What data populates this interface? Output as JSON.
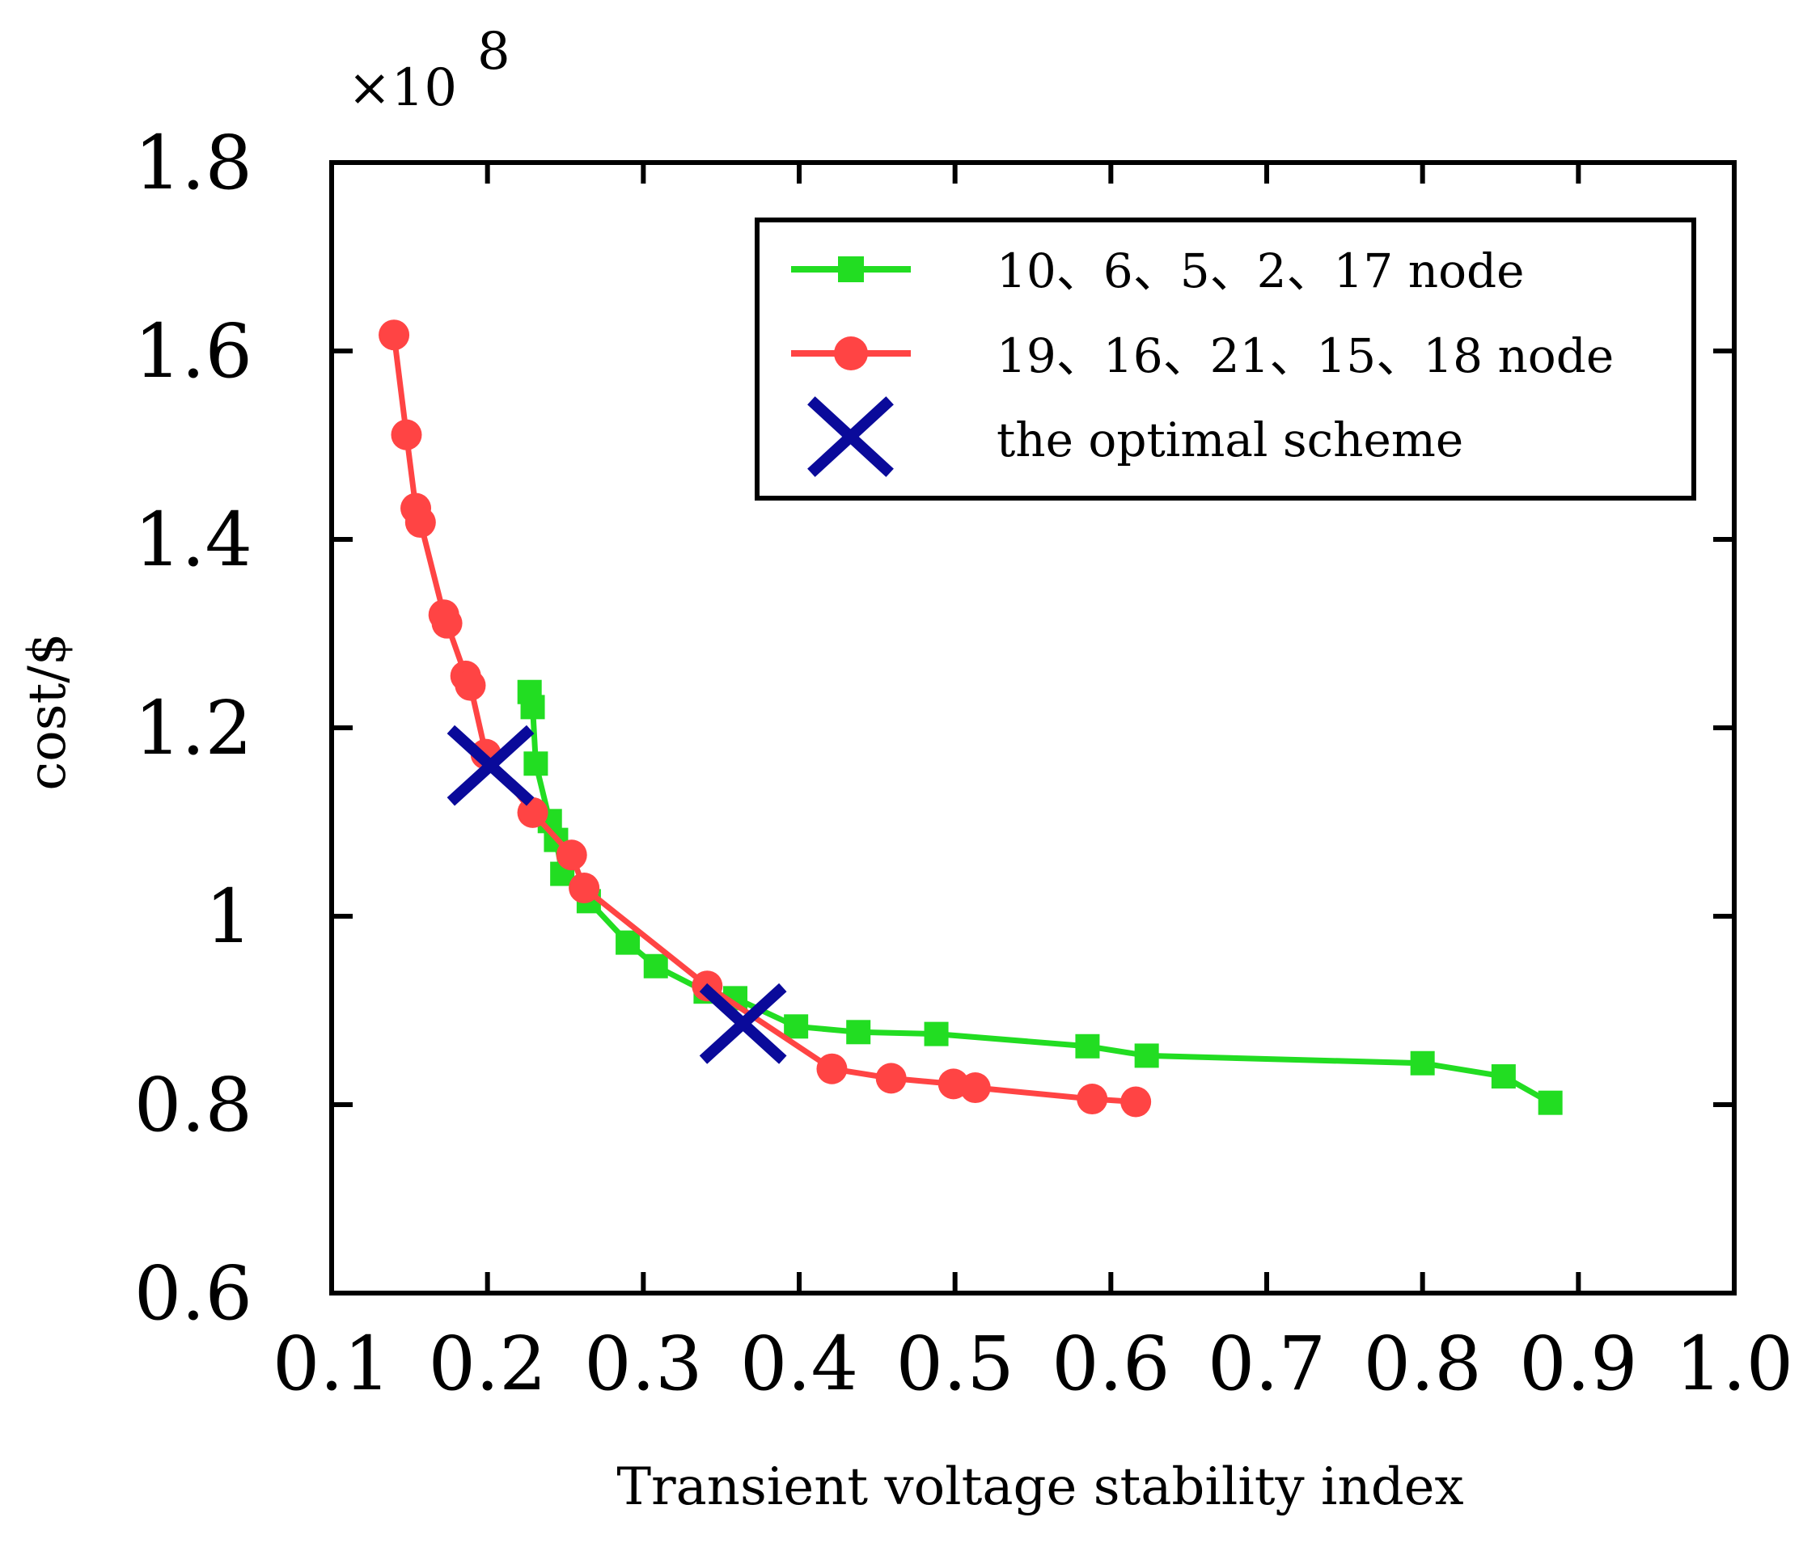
{
  "chart_data": {
    "type": "line",
    "title": "",
    "xlabel": "Transient voltage stability index",
    "ylabel": "cost/$",
    "y_multiplier": "×10",
    "y_exponent": "8",
    "xlim": [
      0.1,
      1.0
    ],
    "ylim": [
      0.6,
      1.8
    ],
    "x_ticks": [
      0.1,
      0.2,
      0.3,
      0.4,
      0.5,
      0.6,
      0.7,
      0.8,
      0.9,
      1.0
    ],
    "x_tick_labels": [
      "0.1",
      "0.2",
      "0.3",
      "0.4",
      "0.5",
      "0.6",
      "0.7",
      "0.8",
      "0.9",
      "1.0"
    ],
    "y_ticks": [
      0.6,
      0.8,
      1.0,
      1.2,
      1.4,
      1.6,
      1.8
    ],
    "y_tick_labels": [
      "0.6",
      "0.8",
      "1",
      "1.2",
      "1.4",
      "1.6",
      "1.8"
    ],
    "grid": false,
    "legend_position": "top-right",
    "series": [
      {
        "name": "10、6、5、2、17 node",
        "color": "#22dd22",
        "marker": "square",
        "x": [
          0.227,
          0.229,
          0.231,
          0.24,
          0.244,
          0.248,
          0.265,
          0.29,
          0.308,
          0.34,
          0.359,
          0.398,
          0.438,
          0.488,
          0.585,
          0.623,
          0.8,
          0.852,
          0.882
        ],
        "y": [
          1.238,
          1.222,
          1.162,
          1.101,
          1.081,
          1.045,
          1.016,
          0.972,
          0.947,
          0.92,
          0.913,
          0.883,
          0.877,
          0.875,
          0.862,
          0.852,
          0.844,
          0.83,
          0.802
        ]
      },
      {
        "name": "19、16、21、15、18 node",
        "color": "#ff4444",
        "marker": "circle",
        "x": [
          0.14,
          0.148,
          0.154,
          0.157,
          0.172,
          0.174,
          0.186,
          0.189,
          0.199,
          0.229,
          0.254,
          0.262,
          0.341,
          0.421,
          0.459,
          0.499,
          0.513,
          0.588,
          0.616
        ],
        "y": [
          1.617,
          1.511,
          1.433,
          1.418,
          1.32,
          1.311,
          1.255,
          1.245,
          1.172,
          1.11,
          1.065,
          1.03,
          0.926,
          0.838,
          0.828,
          0.822,
          0.818,
          0.806,
          0.803
        ]
      }
    ],
    "optimal_points": {
      "name": "the optimal scheme",
      "color": "#0a0a9a",
      "marker": "x",
      "x": [
        0.202,
        0.364
      ],
      "y": [
        1.16,
        0.886
      ]
    }
  }
}
